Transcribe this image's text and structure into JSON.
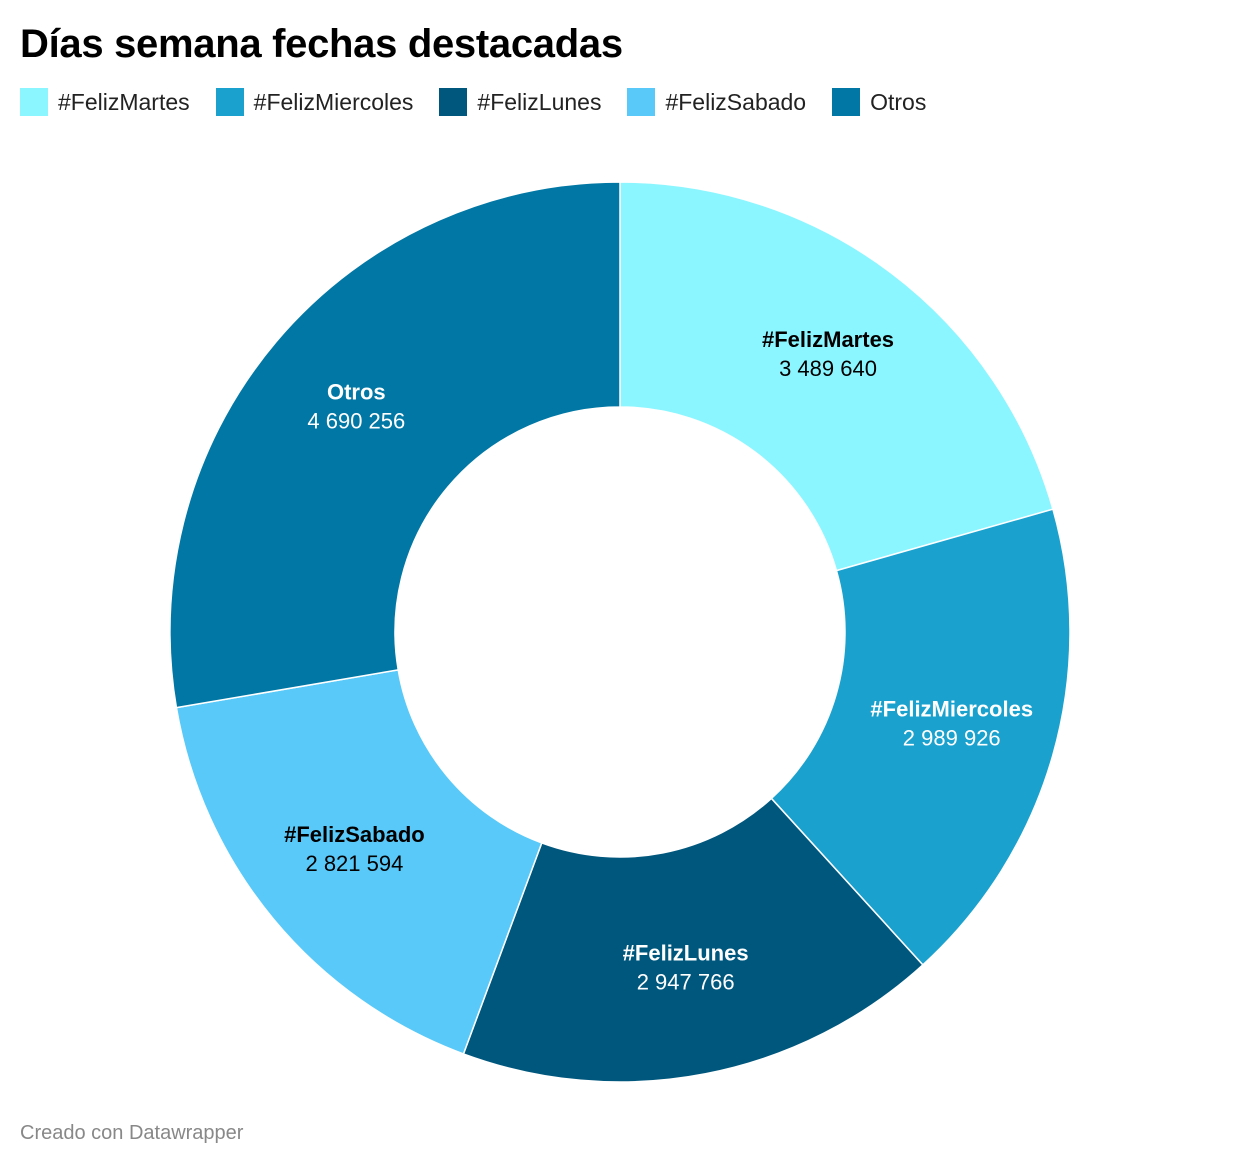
{
  "title": "Días semana fechas destacadas",
  "footer": "Creado con Datawrapper",
  "chart_data": {
    "type": "pie",
    "variant": "donut",
    "title": "Días semana fechas destacadas",
    "legend_placement": "top",
    "categories": [
      "#FelizMartes",
      "#FelizMiercoles",
      "#FelizLunes",
      "#FelizSabado",
      "Otros"
    ],
    "values": [
      3489640,
      2989926,
      2947766,
      2821594,
      4690256
    ],
    "value_labels": [
      "3 489 640",
      "2 989 926",
      "2 947 766",
      "2 821 594",
      "4 690 256"
    ],
    "colors": [
      "#8bf6ff",
      "#1aa1ce",
      "#00577d",
      "#58c9f8",
      "#0077a4"
    ],
    "label_colors": [
      "#000000",
      "#ffffff",
      "#ffffff",
      "#000000",
      "#ffffff"
    ]
  }
}
